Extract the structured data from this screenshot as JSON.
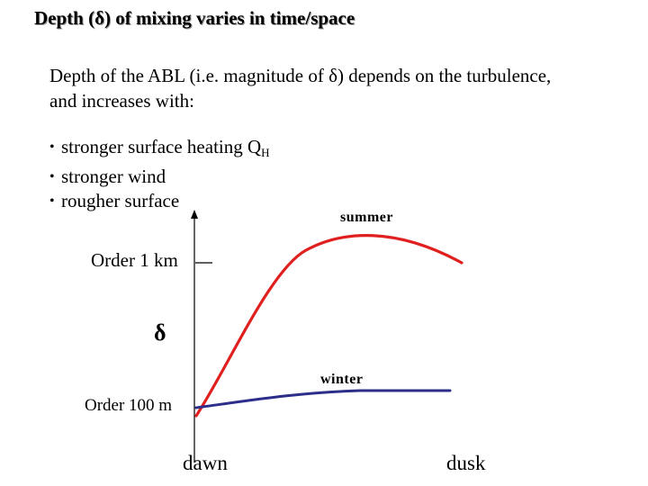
{
  "slide": {
    "title": "Depth (δ) of mixing varies in time/space",
    "intro_line1": "Depth of the ABL (i.e. magnitude of δ) depends on the turbulence,",
    "intro_line2": "and increases with:",
    "bullets": [
      {
        "text": "stronger surface heating Q",
        "subscript": "H"
      },
      {
        "text": "stronger wind",
        "subscript": ""
      },
      {
        "text": "rougher surface",
        "subscript": ""
      }
    ]
  },
  "diagram": {
    "y_axis_symbol": "δ",
    "y_marks": [
      "Order 1 km",
      "Order 100 m"
    ],
    "x_marks": [
      "dawn",
      "dusk"
    ],
    "curves": [
      {
        "label": "summer",
        "color": "#e01f1f"
      },
      {
        "label": "winter",
        "color": "#2d2d8a"
      }
    ],
    "axis_color": "#000000"
  }
}
